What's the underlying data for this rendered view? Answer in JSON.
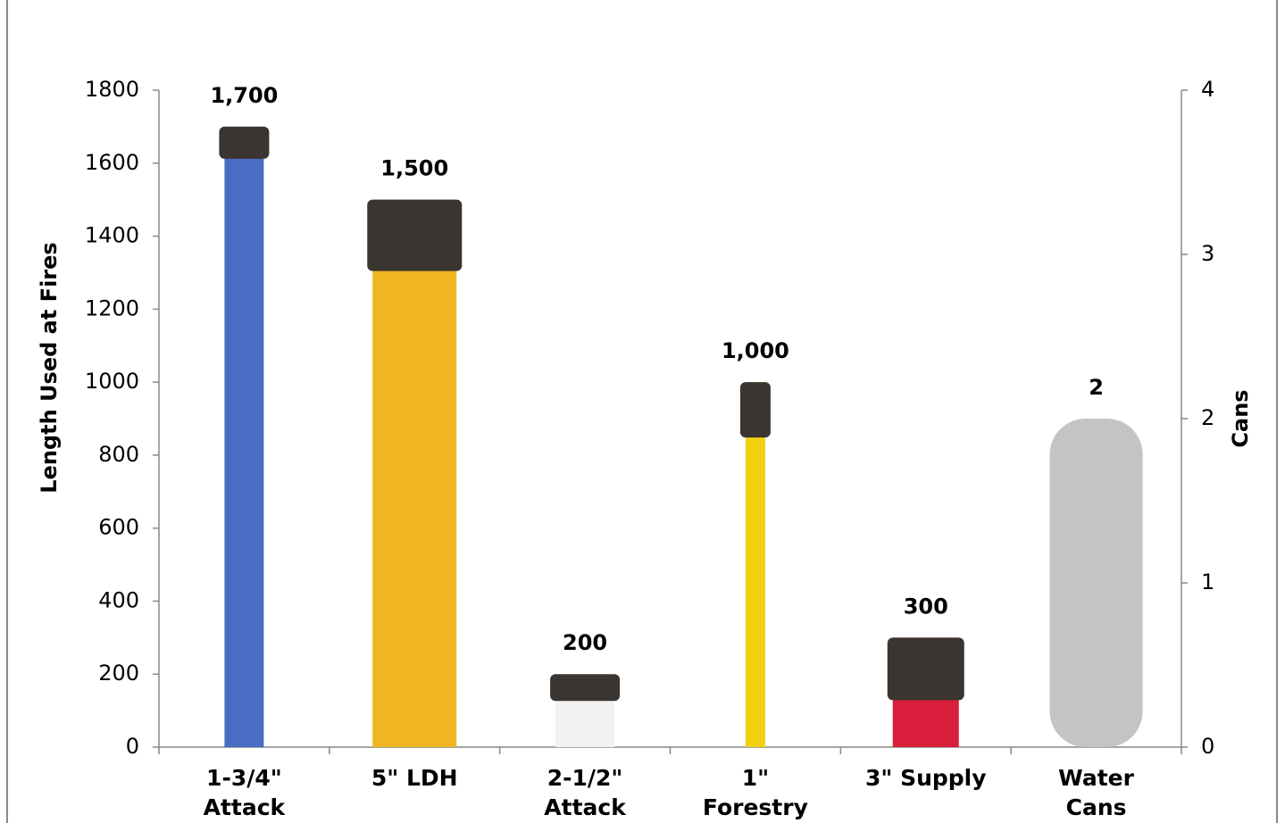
{
  "chart_data": {
    "type": "bar",
    "y_label": "Length Used at Fires",
    "y2_label": "Cans",
    "categories": [
      "1-3/4\" Attack",
      "5\" LDH",
      "2-1/2\" Attack",
      "1\" Forestry",
      "3\" Supply",
      "Water Cans"
    ],
    "series": [
      {
        "colors": [
          "#4a6cc2",
          "#f0b522",
          "#f2f2f2",
          "#f2d010",
          "#d81e3a",
          null
        ],
        "values": [
          1700,
          1500,
          200,
          1000,
          300,
          null
        ],
        "value_labels": [
          "1,700",
          "1,500",
          "200",
          "1,000",
          "300",
          null
        ]
      },
      {
        "axis": "y2",
        "colors": [
          null,
          null,
          null,
          null,
          null,
          "#c4c4c4"
        ],
        "values": [
          null,
          null,
          null,
          null,
          null,
          2
        ]
      }
    ],
    "ylim": [
      0,
      1800
    ],
    "yticks": [
      0,
      200,
      400,
      600,
      800,
      1000,
      1200,
      1400,
      1600,
      1800
    ],
    "y2lim": [
      0,
      4
    ],
    "y2ticks": [
      0,
      1,
      2,
      3,
      4
    ],
    "grid": false
  }
}
